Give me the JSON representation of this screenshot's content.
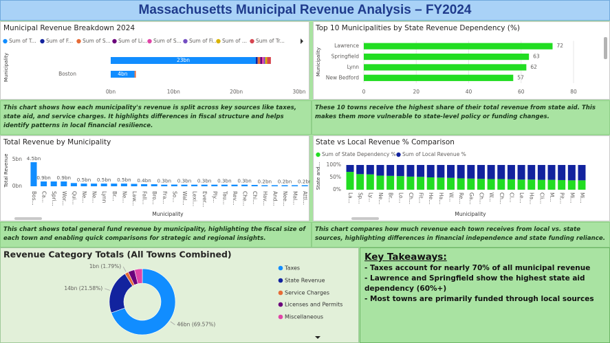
{
  "title": "Massachusetts Municipal Revenue Analysis – FY2024",
  "chart_data": [
    {
      "type": "bar",
      "orientation": "horizontal",
      "stacked": true,
      "title": "Municipal Revenue Breakdown 2024",
      "y_label": "Municipality",
      "categories": [
        null,
        "Boston"
      ],
      "series": [
        {
          "name": "Sum of T...",
          "color": "#118dff",
          "values": [
            23.1,
            3.8
          ],
          "value_labels": [
            "23bn",
            "4bn"
          ]
        },
        {
          "name": "Sum of F...",
          "color": "#12239e",
          "values": [
            0.3,
            0.0
          ]
        },
        {
          "name": "Sum of S...",
          "color": "#e66c37",
          "values": [
            0.4,
            0.2
          ]
        },
        {
          "name": "Sum of Li...",
          "color": "#6b007b",
          "values": [
            0.3,
            0.0
          ]
        },
        {
          "name": "Sum of S...",
          "color": "#e044a7",
          "values": [
            0.3,
            0.0
          ]
        },
        {
          "name": "Sum of Fi...",
          "color": "#744ec2",
          "values": [
            0.2,
            0.0
          ]
        },
        {
          "name": "Sum of ...",
          "color": "#d9b300",
          "values": [
            0.3,
            0.0
          ]
        },
        {
          "name": "Sum of Tr...",
          "color": "#d64550",
          "values": [
            0.6,
            0.0
          ]
        }
      ],
      "xlim": [
        0,
        30
      ],
      "xticks": [
        {
          "value": 0,
          "label": "0bn"
        },
        {
          "value": 10,
          "label": "10bn"
        },
        {
          "value": 20,
          "label": "20bn"
        },
        {
          "value": 30,
          "label": "30bn"
        }
      ],
      "grid": false
    },
    {
      "type": "bar",
      "orientation": "horizontal",
      "title": "Top 10 Municipalities by State Revenue Dependency (%)",
      "y_label": "Municipality",
      "categories": [
        "Lawrence",
        "Springfield",
        "Lynn",
        "New Bedford"
      ],
      "values": [
        72,
        63,
        62,
        57
      ],
      "color": "#22dd22",
      "data_labels": true,
      "xlim": [
        0,
        82
      ],
      "xticks": [
        0,
        20,
        40,
        60,
        80
      ],
      "grid": true
    },
    {
      "type": "bar",
      "title": "Total Revenue by Municipality",
      "x_label": "Municipality",
      "y_label": "Total Revenue",
      "categories": [
        "Bos...",
        "Ca...",
        "Spri...",
        "Wor...",
        "Qui...",
        "Ne...",
        "Ne...",
        "Lynn",
        "Br...",
        "Ne...",
        "Law...",
        "Fall...",
        "Bro...",
        "Fra...",
        "So...",
        "Wal...",
        "Lexi...",
        "Ever...",
        "Ply...",
        "Tau...",
        "Rev...",
        "Che...",
        "Chi...",
        "Hav...",
        "And...",
        "Nee...",
        "Mal...",
        "Attl..."
      ],
      "values": [
        4.5,
        0.9,
        0.9,
        0.9,
        0.6,
        0.5,
        0.5,
        0.5,
        0.5,
        0.5,
        0.45,
        0.4,
        0.38,
        0.3,
        0.32,
        0.3,
        0.3,
        0.3,
        0.3,
        0.3,
        0.3,
        0.3,
        0.25,
        0.2,
        0.2,
        0.2,
        0.2,
        0.2
      ],
      "value_labels": [
        "4.5bn",
        "0.9bn",
        null,
        "0.9bn",
        null,
        "0.5bn",
        null,
        "0.5bn",
        null,
        "0.5bn",
        null,
        "0.4bn",
        null,
        "0.3bn",
        null,
        "0.3bn",
        null,
        "0.3bn",
        null,
        "0.3bn",
        null,
        "0.3bn",
        null,
        "0.2bn",
        null,
        "0.2bn",
        null,
        "0.2bn"
      ],
      "color": "#118dff",
      "ylim": [
        0,
        5.8
      ],
      "yticks": [
        {
          "value": 0,
          "label": "0bn"
        },
        {
          "value": 5,
          "label": "5bn"
        }
      ],
      "grid": false
    },
    {
      "type": "bar",
      "stacked": true,
      "title": "State vs Local Revenue % Comparison",
      "x_label": "Municipality",
      "y_label": "State and...",
      "categories": [
        "La...",
        "Sp...",
        "Ly...",
        "Ne...",
        "Br...",
        "Lo...",
        "Ch...",
        "Fit...",
        "He...",
        "Ha...",
        "W...",
        "Re...",
        "Ga...",
        "Ch...",
        "W...",
        "Ch...",
        "Cl...",
        "Le...",
        "Ha...",
        "Cli...",
        "M...",
        "Pit...",
        "Mi...",
        "Mi..."
      ],
      "series": [
        {
          "name": "Sum of State Dependency %",
          "color": "#22dd22",
          "values": [
            72,
            63,
            62,
            57,
            56,
            55,
            53,
            52,
            50,
            49,
            48,
            46,
            45,
            44,
            43,
            43,
            42,
            41,
            41,
            40,
            40,
            39,
            38,
            38
          ]
        },
        {
          "name": "Sum of Local Revenue %",
          "color": "#12239e",
          "values": [
            28,
            37,
            38,
            43,
            44,
            45,
            47,
            48,
            50,
            51,
            52,
            54,
            55,
            56,
            57,
            57,
            58,
            59,
            59,
            60,
            60,
            61,
            62,
            62
          ]
        }
      ],
      "ylim": [
        0,
        100
      ],
      "yticks": [
        {
          "value": 0,
          "label": "0%"
        },
        {
          "value": 50,
          "label": "50%"
        },
        {
          "value": 100,
          "label": "100%"
        }
      ],
      "grid": false
    },
    {
      "type": "donut",
      "title": "Revenue Category Totals (All Towns Combined)",
      "categories": [
        "Taxes",
        "State Revenue",
        "Service Charges",
        "Licenses and Permits",
        "Miscellaneous"
      ],
      "values": [
        69.57,
        21.58,
        1.79,
        3.2,
        3.86
      ],
      "value_labels": [
        "46bn (69.57%)",
        "14bn (21.58%)",
        "1bn (1.79%)",
        null,
        null
      ],
      "colors": [
        "#118dff",
        "#12239e",
        "#e66c37",
        "#6b007b",
        "#e044a7"
      ]
    }
  ],
  "notes": [
    "This chart shows how each municipality's revenue is split across key sources like taxes, state aid, and service charges. It highlights differences in fiscal structure and helps identify patterns in local financial resilience.",
    "These 10 towns receive the highest share of their total revenue from state aid. This makes them more vulnerable to state-level policy or funding changes.",
    "This chart shows total general fund revenue by municipality, highlighting the fiscal size of each town and enabling quick comparisons for strategic and regional insights.",
    "This chart compares how much revenue each town receives from local vs. state sources, highlighting differences in financial independence and state funding reliance."
  ],
  "takeaways": {
    "title": "Key Takeaways:",
    "items": [
      "- Taxes account for nearly 70% of all municipal revenue",
      "- Lawrence and Springfield show the highest state aid dependency (60%+)",
      "- Most towns are primarily funded through local sources"
    ]
  }
}
